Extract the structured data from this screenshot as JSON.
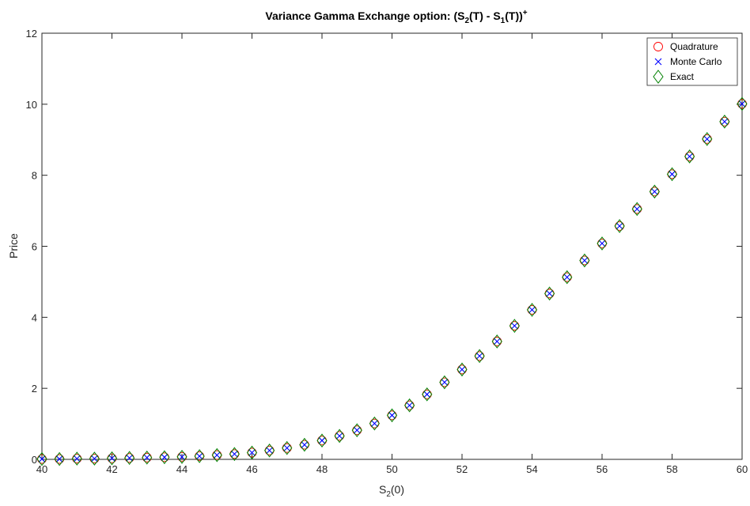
{
  "chart_data": {
    "type": "scatter",
    "title": {
      "prefix": "Variance Gamma Exchange option: (S",
      "sub1": "2",
      "mid1": "(T) - S",
      "sub2": "1",
      "mid2": "(T))",
      "sup": "+"
    },
    "xlabel": {
      "base": "S",
      "sub": "2",
      "rest": "(0)"
    },
    "ylabel": "Price",
    "xlim": [
      40,
      60
    ],
    "ylim": [
      0,
      12
    ],
    "xticks": [
      "40",
      "42",
      "44",
      "46",
      "48",
      "50",
      "52",
      "54",
      "56",
      "58",
      "60"
    ],
    "yticks": [
      "0",
      "2",
      "4",
      "6",
      "8",
      "10",
      "12"
    ],
    "grid": false,
    "legend_position": "top-right",
    "x": [
      40,
      40.5,
      41,
      41.5,
      42,
      42.5,
      43,
      43.5,
      44,
      44.5,
      45,
      45.5,
      46,
      46.5,
      47,
      47.5,
      48,
      48.5,
      49,
      49.5,
      50,
      50.5,
      51,
      51.5,
      52,
      52.5,
      53,
      53.5,
      54,
      54.5,
      55,
      55.5,
      56,
      56.5,
      57,
      57.5,
      58,
      58.5,
      59,
      59.5,
      60
    ],
    "series": [
      {
        "name": "Quadrature",
        "marker": "circle",
        "color": "#ff0000",
        "values": [
          0.01,
          0.01,
          0.02,
          0.02,
          0.03,
          0.04,
          0.05,
          0.06,
          0.07,
          0.09,
          0.12,
          0.15,
          0.19,
          0.25,
          0.32,
          0.41,
          0.53,
          0.66,
          0.82,
          1.01,
          1.24,
          1.52,
          1.83,
          2.17,
          2.53,
          2.91,
          3.32,
          3.76,
          4.21,
          4.67,
          5.13,
          5.6,
          6.08,
          6.57,
          7.05,
          7.54,
          8.03,
          8.53,
          9.02,
          9.51,
          10.01
        ]
      },
      {
        "name": "Monte Carlo",
        "marker": "x",
        "color": "#0000ff",
        "values": [
          0.01,
          0.01,
          0.02,
          0.02,
          0.03,
          0.04,
          0.05,
          0.06,
          0.07,
          0.09,
          0.12,
          0.15,
          0.19,
          0.25,
          0.32,
          0.41,
          0.53,
          0.66,
          0.82,
          1.01,
          1.24,
          1.52,
          1.83,
          2.17,
          2.53,
          2.91,
          3.32,
          3.76,
          4.21,
          4.67,
          5.13,
          5.6,
          6.08,
          6.57,
          7.05,
          7.54,
          8.03,
          8.53,
          9.02,
          9.51,
          10.01
        ]
      },
      {
        "name": "Exact",
        "marker": "diamond",
        "color": "#008000",
        "values": [
          0.01,
          0.01,
          0.02,
          0.02,
          0.03,
          0.04,
          0.05,
          0.06,
          0.07,
          0.09,
          0.12,
          0.15,
          0.19,
          0.25,
          0.32,
          0.41,
          0.53,
          0.66,
          0.82,
          1.01,
          1.24,
          1.52,
          1.83,
          2.17,
          2.53,
          2.91,
          3.32,
          3.76,
          4.21,
          4.67,
          5.13,
          5.6,
          6.08,
          6.57,
          7.05,
          7.54,
          8.03,
          8.53,
          9.02,
          9.51,
          10.01
        ]
      }
    ]
  }
}
